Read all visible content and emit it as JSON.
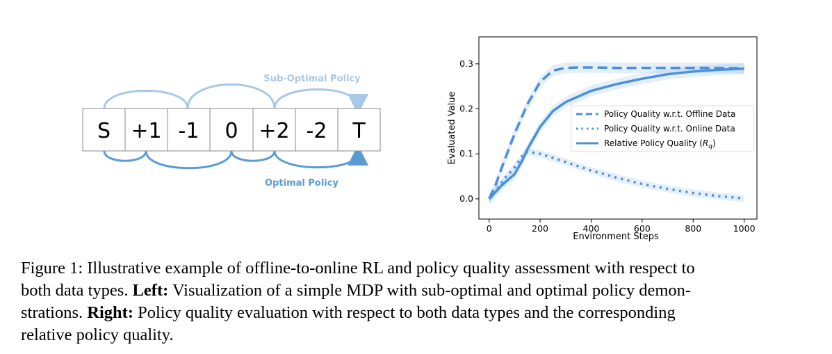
{
  "mdp": {
    "states": [
      "S",
      "+1",
      "-1",
      "0",
      "+2",
      "-2",
      "T"
    ],
    "suboptimal_label": "Sub-Optimal Policy",
    "optimal_label": "Optimal Policy",
    "suboptimal_color": "#a8c8e8",
    "optimal_color": "#5b9bd5"
  },
  "chart_data": {
    "type": "line",
    "xlabel": "Environment Steps",
    "ylabel": "Evaluated Value",
    "xlim": [
      -40,
      1050
    ],
    "ylim": [
      -0.045,
      0.36
    ],
    "xticks": [
      0,
      200,
      400,
      600,
      800,
      1000
    ],
    "yticks": [
      0.0,
      0.1,
      0.2,
      0.3
    ],
    "ytick_labels": [
      "0.0",
      "0.1",
      "0.2",
      "0.3"
    ],
    "grid": false,
    "legend_position": "right",
    "color": "#4a90d9",
    "series": [
      {
        "name": "Policy Quality w.r.t. Offline Data",
        "style": "dashed",
        "x": [
          0,
          25,
          50,
          100,
          150,
          200,
          250,
          300,
          350,
          400,
          500,
          600,
          700,
          800,
          900,
          1000
        ],
        "y": [
          0.0,
          0.03,
          0.07,
          0.145,
          0.21,
          0.26,
          0.285,
          0.291,
          0.292,
          0.292,
          0.291,
          0.291,
          0.291,
          0.291,
          0.291,
          0.29
        ]
      },
      {
        "name": "Policy Quality w.r.t. Online Data",
        "style": "dotted",
        "x": [
          0,
          30,
          60,
          100,
          130,
          150,
          200,
          300,
          400,
          500,
          600,
          700,
          800,
          900,
          1000
        ],
        "y": [
          0.0,
          0.02,
          0.045,
          0.07,
          0.095,
          0.105,
          0.1,
          0.082,
          0.063,
          0.047,
          0.033,
          0.022,
          0.013,
          0.006,
          0.001
        ]
      },
      {
        "name": "Relative Policy Quality (R_q)",
        "style": "solid",
        "x": [
          0,
          50,
          100,
          130,
          150,
          200,
          250,
          300,
          400,
          500,
          600,
          700,
          800,
          900,
          1000
        ],
        "y": [
          0.0,
          0.03,
          0.055,
          0.085,
          0.11,
          0.16,
          0.195,
          0.215,
          0.24,
          0.255,
          0.267,
          0.277,
          0.283,
          0.287,
          0.289
        ]
      }
    ]
  },
  "caption": {
    "line1": "Figure 1: Illustrative example of offline-to-online RL and policy quality assessment with respect to",
    "line2_a": "both data types. ",
    "line2_b": "Left:",
    "line2_c": " Visualization of a simple MDP with sub-optimal and optimal policy demon-",
    "line3_a": "strations. ",
    "line3_b": "Right:",
    "line3_c": " Policy quality evaluation with respect to both data types and the corresponding",
    "line4": "relative policy quality."
  }
}
